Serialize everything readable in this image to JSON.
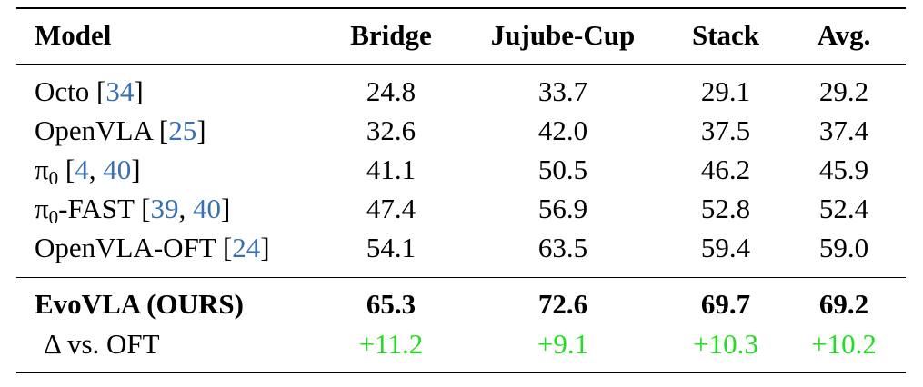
{
  "header": {
    "model": "Model",
    "bridge": "Bridge",
    "jujube": "Jujube-Cup",
    "stack": "Stack",
    "avg": "Avg."
  },
  "rows": [
    {
      "name": "Octo",
      "refs": [
        "34"
      ],
      "values": [
        "24.8",
        "33.7",
        "29.1",
        "29.2"
      ]
    },
    {
      "name": "OpenVLA",
      "refs": [
        "25"
      ],
      "values": [
        "32.6",
        "42.0",
        "37.5",
        "37.4"
      ]
    },
    {
      "name_greek": "π",
      "name_sub": "0",
      "refs": [
        "4",
        "40"
      ],
      "values": [
        "41.1",
        "50.5",
        "46.2",
        "45.9"
      ]
    },
    {
      "name_greek": "π",
      "name_sub": "0",
      "name_suffix": "-FAST",
      "refs": [
        "39",
        "40"
      ],
      "values": [
        "47.4",
        "56.9",
        "52.8",
        "52.4"
      ]
    },
    {
      "name": "OpenVLA-OFT",
      "refs": [
        "24"
      ],
      "values": [
        "54.1",
        "63.5",
        "59.4",
        "59.0"
      ]
    }
  ],
  "ours": {
    "name": "EvoVLA (OURS)",
    "values": [
      "65.3",
      "72.6",
      "69.7",
      "69.2"
    ]
  },
  "delta": {
    "name": "Δ vs. OFT",
    "values": [
      "+11.2",
      "+9.1",
      "+10.3",
      "+10.2"
    ]
  },
  "punct": {
    "open": "[",
    "close": "]",
    "sep": ", "
  },
  "colors": {
    "citation": "#3a6fb4",
    "delta": "#22dd22",
    "text": "#000000"
  }
}
